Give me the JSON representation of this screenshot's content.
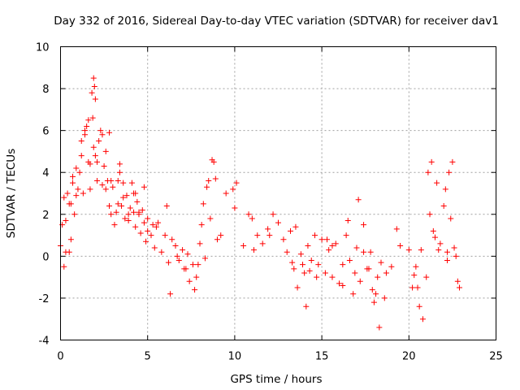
{
  "chart_data": {
    "type": "scatter",
    "title": "Day 332 of 2016, Sidereal Day-to-day VTEC variation (SDTVAR) for receiver dav1",
    "xlabel": "GPS time / hours",
    "ylabel": "SDTVAR / TECUs",
    "xlim": [
      0,
      25
    ],
    "ylim": [
      -4,
      10
    ],
    "xticks": [
      "0",
      "5",
      "10",
      "15",
      "20",
      "25"
    ],
    "yticks": [
      "-4",
      "-2",
      "0",
      "2",
      "4",
      "6",
      "8",
      "10"
    ],
    "grid": true,
    "marker": "+",
    "color": "#ff0000",
    "series": [
      {
        "name": "SDTVAR",
        "x": [
          0.0,
          0.1,
          0.2,
          0.3,
          0.4,
          0.5,
          0.6,
          0.7,
          0.8,
          0.9,
          1.0,
          1.1,
          1.2,
          1.3,
          1.4,
          1.5,
          1.6,
          1.7,
          1.8,
          1.9,
          2.0,
          2.1,
          2.2,
          2.3,
          2.4,
          2.5,
          2.6,
          2.7,
          2.8,
          2.9,
          3.0,
          3.1,
          3.2,
          3.3,
          3.4,
          3.5,
          3.6,
          3.7,
          3.8,
          3.9,
          4.0,
          4.1,
          4.2,
          4.3,
          4.4,
          4.5,
          4.6,
          4.7,
          4.8,
          4.9,
          5.0,
          5.2,
          5.4,
          5.6,
          5.8,
          6.0,
          6.2,
          6.4,
          6.6,
          6.8,
          7.0,
          7.2,
          7.4,
          7.6,
          7.8,
          8.0,
          8.2,
          8.4,
          8.6,
          8.8,
          9.0,
          9.2,
          9.5,
          10.0,
          10.5,
          10.8,
          11.0,
          11.3,
          11.6,
          11.9,
          12.2,
          12.5,
          12.8,
          13.0,
          13.2,
          13.4,
          13.6,
          13.8,
          14.0,
          14.2,
          14.4,
          14.6,
          14.8,
          15.0,
          15.2,
          15.4,
          15.6,
          15.8,
          16.0,
          16.2,
          16.4,
          16.6,
          16.8,
          17.0,
          17.2,
          17.4,
          17.6,
          17.8,
          18.0,
          18.2,
          18.4,
          18.7,
          19.0,
          19.5,
          20.0,
          20.2,
          20.4,
          20.6,
          20.8,
          21.0,
          21.2,
          21.4,
          21.6,
          21.8,
          22.0,
          22.2,
          22.4,
          22.6,
          22.8,
          1.9,
          1.95,
          2.0,
          1.85,
          0.2,
          0.3,
          0.5,
          0.7,
          1.2,
          1.4,
          1.6,
          2.4,
          2.6,
          2.8,
          3.3,
          3.6,
          3.9,
          4.2,
          4.5,
          5.0,
          5.5,
          6.3,
          6.7,
          7.3,
          7.7,
          8.1,
          8.5,
          8.7,
          9.9,
          10.1,
          12.0,
          13.5,
          13.9,
          14.3,
          15.6,
          16.2,
          17.1,
          17.4,
          17.9,
          18.1,
          18.3,
          19.3,
          20.3,
          20.5,
          21.3,
          21.5,
          22.1,
          22.3,
          22.5,
          22.7,
          0.6,
          0.9,
          1.7,
          2.1,
          2.9,
          3.4,
          4.3,
          4.8,
          5.3,
          6.1,
          7.1,
          7.9,
          8.3,
          8.9,
          11.1,
          13.3,
          14.1,
          14.7,
          15.3,
          16.5,
          16.9,
          17.7,
          18.6,
          20.7,
          21.1,
          21.7,
          22.2,
          22.9
        ],
        "y": [
          0.5,
          1.5,
          2.8,
          0.2,
          3.0,
          2.5,
          0.8,
          3.5,
          2.0,
          4.2,
          3.2,
          4.0,
          5.5,
          3.0,
          5.8,
          6.2,
          4.5,
          3.2,
          7.8,
          5.2,
          4.8,
          3.6,
          5.5,
          6.0,
          3.4,
          4.3,
          5.0,
          3.6,
          2.4,
          2.0,
          3.3,
          1.5,
          2.1,
          3.6,
          4.0,
          2.4,
          2.8,
          1.8,
          2.9,
          2.0,
          2.3,
          3.5,
          2.1,
          1.4,
          2.6,
          2.0,
          1.1,
          2.2,
          1.6,
          0.7,
          1.8,
          1.0,
          0.4,
          1.6,
          0.2,
          1.0,
          -0.3,
          0.8,
          0.5,
          -0.2,
          0.3,
          -0.6,
          -1.2,
          -0.4,
          -1.0,
          0.6,
          2.5,
          3.3,
          1.8,
          4.5,
          0.8,
          1.0,
          3.0,
          2.3,
          0.5,
          2.0,
          1.8,
          1.0,
          0.6,
          1.3,
          2.0,
          1.6,
          0.8,
          0.2,
          1.2,
          -0.6,
          -1.5,
          0.1,
          -0.8,
          0.5,
          -0.2,
          1.0,
          -0.4,
          0.8,
          -0.8,
          0.3,
          -1.0,
          0.6,
          -1.3,
          -0.4,
          1.0,
          -0.2,
          -1.8,
          0.4,
          -1.2,
          1.5,
          -0.6,
          0.2,
          -2.2,
          -1.0,
          -0.3,
          -0.8,
          -0.5,
          0.5,
          0.3,
          -1.5,
          -0.5,
          -2.4,
          -3.0,
          -1.0,
          2.0,
          1.2,
          3.5,
          0.6,
          2.4,
          -0.2,
          1.8,
          0.4,
          -1.2,
          8.5,
          8.1,
          7.5,
          6.6,
          -0.5,
          1.7,
          0.2,
          3.8,
          4.8,
          6.0,
          6.5,
          5.8,
          3.2,
          5.9,
          2.5,
          3.5,
          1.7,
          3.0,
          2.1,
          1.2,
          1.4,
          -1.8,
          0.0,
          0.1,
          -1.6,
          1.5,
          3.6,
          4.6,
          3.2,
          3.5,
          1.0,
          1.4,
          -0.4,
          -0.7,
          0.5,
          -1.4,
          2.7,
          0.2,
          -1.6,
          -1.8,
          -3.4,
          1.3,
          -0.9,
          -1.5,
          4.5,
          0.9,
          3.2,
          4.0,
          4.5,
          0.0,
          2.5,
          2.9,
          4.4,
          4.5,
          3.6,
          4.4,
          3.0,
          3.3,
          1.5,
          2.4,
          -0.6,
          -0.4,
          -0.1,
          3.7,
          0.3,
          -0.3,
          -2.4,
          -1.0,
          0.8,
          1.7,
          -0.8,
          -0.6,
          -2.0,
          0.3,
          4.0,
          0.3,
          0.2,
          -1.5
        ]
      }
    ]
  }
}
